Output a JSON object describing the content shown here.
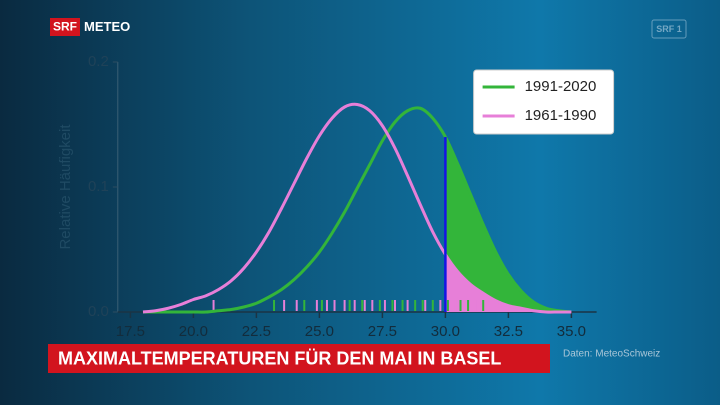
{
  "header": {
    "logo": "SRF",
    "brand": "METEO",
    "channel": "SRF 1"
  },
  "caption": "MAXIMALTEMPERATUREN FÜR DEN MAI IN BASEL",
  "source": "Daten: MeteoSchweiz",
  "chart_data": {
    "type": "line",
    "ylabel": "Relative Häufigkeit",
    "x": [
      18,
      18.5,
      19,
      19.5,
      20,
      20.5,
      21,
      21.5,
      22,
      22.5,
      23,
      23.5,
      24,
      24.5,
      25,
      25.5,
      26,
      26.5,
      27,
      27.5,
      28,
      28.5,
      29,
      29.5,
      30,
      30.5,
      31,
      31.5,
      32,
      32.5,
      33,
      33.5,
      34,
      34.5,
      35
    ],
    "series": [
      {
        "name": "1991-2020",
        "color": "#33b53a",
        "values": [
          0,
          0,
          0,
          0,
          0,
          0,
          0.001,
          0.002,
          0.004,
          0.007,
          0.012,
          0.018,
          0.026,
          0.036,
          0.048,
          0.063,
          0.08,
          0.099,
          0.118,
          0.137,
          0.152,
          0.161,
          0.163,
          0.155,
          0.14,
          0.118,
          0.094,
          0.07,
          0.048,
          0.03,
          0.017,
          0.008,
          0.003,
          0.001,
          0
        ],
        "rug": [
          23.2,
          24.4,
          25.1,
          26.2,
          26.7,
          27.4,
          27.9,
          28.3,
          28.8,
          29.1,
          29.5,
          30.1,
          30.6,
          30.9,
          31.5
        ]
      },
      {
        "name": "1961-1990",
        "color": "#e77fd8",
        "values": [
          0,
          0.001,
          0.003,
          0.006,
          0.01,
          0.013,
          0.018,
          0.025,
          0.035,
          0.048,
          0.064,
          0.083,
          0.103,
          0.123,
          0.141,
          0.155,
          0.164,
          0.166,
          0.161,
          0.149,
          0.131,
          0.109,
          0.086,
          0.064,
          0.046,
          0.032,
          0.022,
          0.015,
          0.009,
          0.005,
          0.003,
          0.001,
          0,
          0,
          0
        ],
        "rug": [
          20.8,
          23.6,
          24.1,
          24.9,
          25.3,
          25.6,
          26.0,
          26.4,
          26.8,
          27.1,
          27.6,
          28.0,
          28.5,
          29.2,
          29.8,
          30.4,
          31.2
        ]
      }
    ],
    "threshold": 30,
    "threshold_color": "#1414e6",
    "xlim": [
      17,
      36
    ],
    "ylim": [
      0,
      0.2
    ],
    "xticks": [
      17.5,
      {
        "value": 20,
        "label": "20.0"
      },
      22.5,
      {
        "value": 25,
        "label": "25.0"
      },
      27.5,
      {
        "value": 30,
        "label": "30.0"
      },
      32.5,
      {
        "value": 35,
        "label": "35.0"
      }
    ],
    "yticks": [
      {
        "value": 0,
        "label": "0.0"
      },
      0.1,
      0.2
    ],
    "legend": "upper right"
  }
}
